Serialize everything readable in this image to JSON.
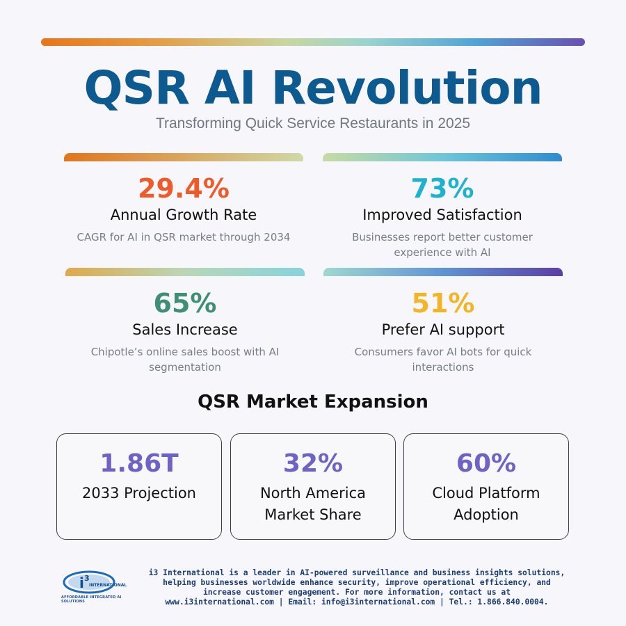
{
  "title": "QSR AI Revolution",
  "subtitle": "Transforming Quick Service Restaurants in 2025",
  "stats": [
    {
      "value": "29.4%",
      "label": "Annual Growth Rate",
      "description": "CAGR for AI in QSR market through 2034",
      "color": "#ee5a2a"
    },
    {
      "value": "73%",
      "label": "Improved Satisfaction",
      "description": "Businesses report better customer experience with AI",
      "color": "#1fb2cf"
    },
    {
      "value": "65%",
      "label": "Sales Increase",
      "description": "Chipotle’s online sales boost with AI segmentation",
      "color": "#3e8f73"
    },
    {
      "value": "51%",
      "label": "Prefer AI support",
      "description": "Consumers favor AI bots for quick interactions",
      "color": "#f3b526"
    }
  ],
  "expansion": {
    "title": "QSR Market Expansion",
    "cards": [
      {
        "value": "1.86T",
        "label": "2033 Projection"
      },
      {
        "value": "32%",
        "label": "North America Market Share"
      },
      {
        "value": "60%",
        "label": "Cloud Platform Adoption"
      }
    ],
    "value_color": "#6d63c4"
  },
  "logo": {
    "name": "i3 INTERNATIONAL",
    "tagline": "AFFORDABLE INTEGRATED AI SOLUTIONS"
  },
  "footer": "i3 International is a leader in AI-powered surveillance and business insights solutions, helping businesses worldwide enhance security, improve operational efficiency, and increase customer engagement. For more information, contact us at www.i3international.com | Email: info@i3international.com | Tel.: 1.866.840.0004."
}
